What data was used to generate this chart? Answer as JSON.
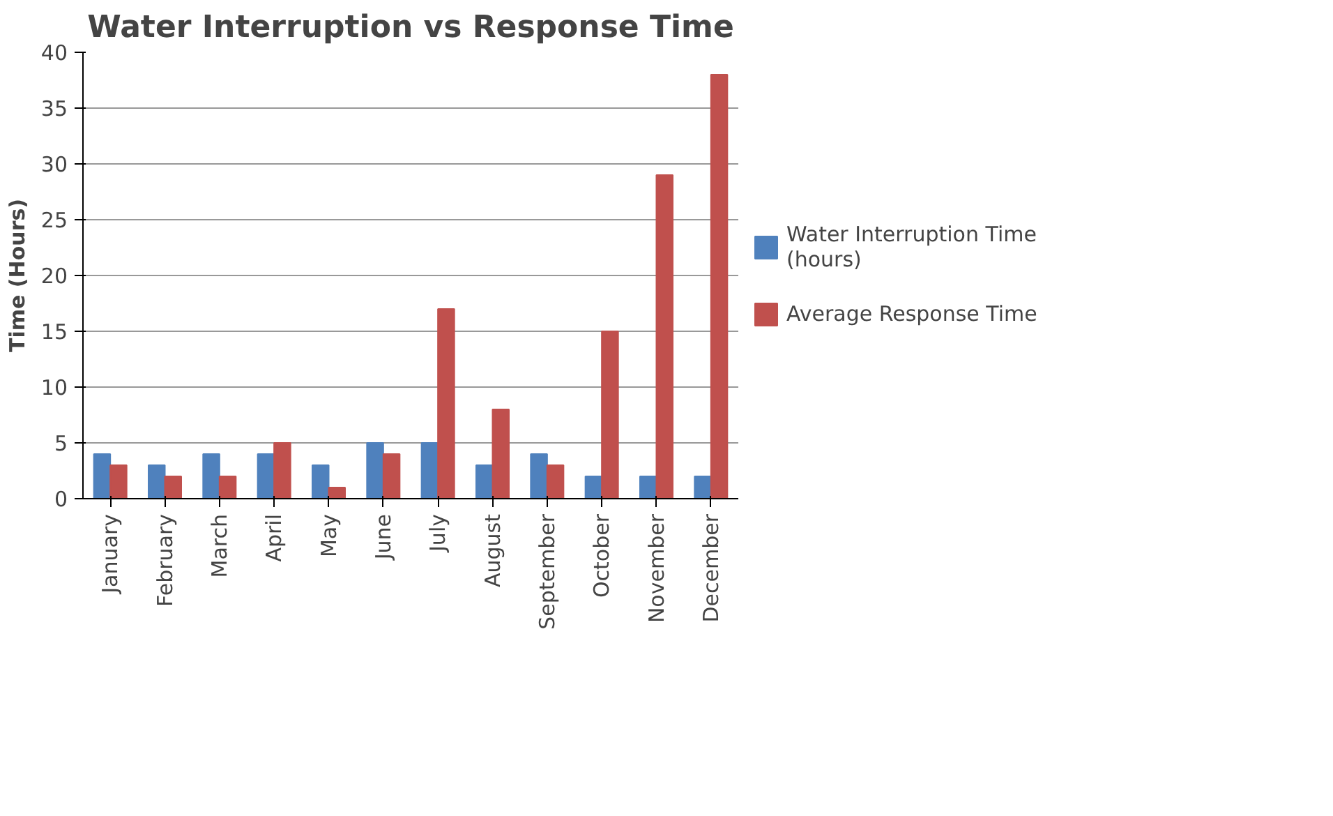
{
  "chart_data": {
    "type": "bar",
    "title": "Water Interruption vs Response Time",
    "ylabel": "Time (Hours)",
    "categories": [
      "January",
      "February",
      "March",
      "April",
      "May",
      "June",
      "July",
      "August",
      "September",
      "October",
      "November",
      "December"
    ],
    "series": [
      {
        "name": "Water Interruption Time (hours)",
        "color": "#4f81bd",
        "values": [
          4,
          3,
          4,
          4,
          3,
          5,
          5,
          3,
          4,
          2,
          2,
          2
        ]
      },
      {
        "name": "Average Response Time",
        "color": "#c0504d",
        "values": [
          3,
          2,
          2,
          5,
          1,
          4,
          17,
          8,
          3,
          15,
          29,
          38
        ]
      }
    ],
    "ylim": [
      0,
      40
    ],
    "yticks": [
      0,
      5,
      10,
      15,
      20,
      25,
      30,
      35,
      40
    ],
    "grid": "y",
    "legend": "right"
  }
}
